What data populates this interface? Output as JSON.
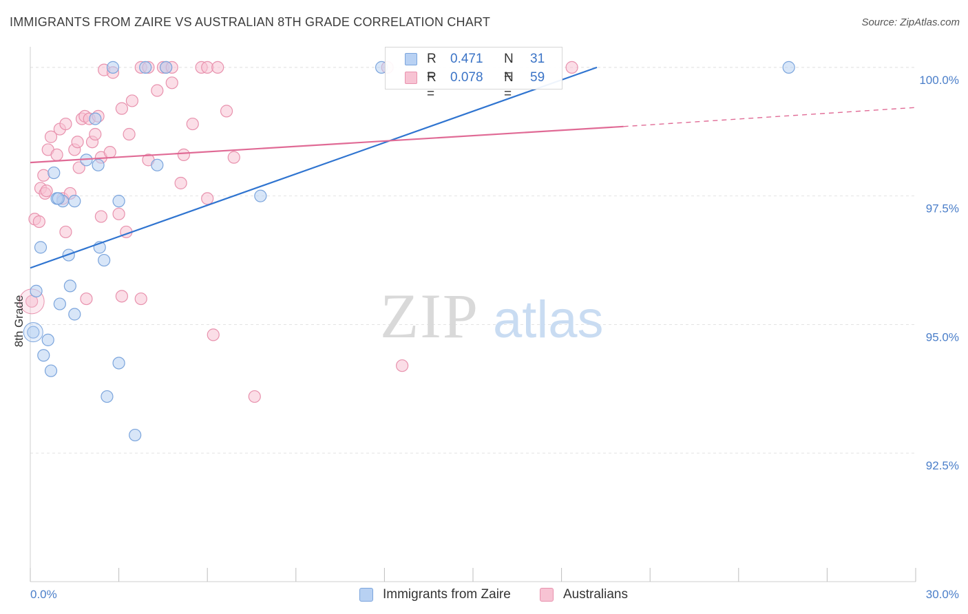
{
  "header": {
    "title": "IMMIGRANTS FROM ZAIRE VS AUSTRALIAN 8TH GRADE CORRELATION CHART",
    "source": "Source: ZipAtlas.com"
  },
  "watermark": {
    "zip": "ZIP",
    "atlas": "atlas"
  },
  "legend": {
    "rows": [
      {
        "r_label": "R =",
        "r_value": "0.471",
        "n_label": "N =",
        "n_value": "31"
      },
      {
        "r_label": "R =",
        "r_value": "0.078",
        "n_label": "N =",
        "n_value": "59"
      }
    ]
  },
  "bottom_legend": {
    "items": [
      {
        "label": "Immigrants from Zaire"
      },
      {
        "label": "Australians"
      }
    ]
  },
  "colors": {
    "blue_fill": "#b8d1f3",
    "blue_stroke": "#7aa4dc",
    "blue_line": "#2f74d0",
    "pink_fill": "#f7c3d3",
    "pink_stroke": "#e891ad",
    "pink_line": "#e06a95",
    "tick_label": "#4a7ec9",
    "grid": "#e3e3e3"
  },
  "chart_data": {
    "type": "scatter",
    "title": "IMMIGRANTS FROM ZAIRE VS AUSTRALIAN 8TH GRADE CORRELATION CHART",
    "xlabel": "",
    "ylabel": "8th Grade",
    "xlim": [
      0,
      30
    ],
    "ylim": [
      90.0,
      100.4
    ],
    "x_tick_labels": [
      "0.0%",
      "30.0%"
    ],
    "y_ticks": [
      {
        "value": 100.0,
        "label": "100.0%"
      },
      {
        "value": 97.5,
        "label": "97.5%"
      },
      {
        "value": 95.0,
        "label": "95.0%"
      },
      {
        "value": 92.5,
        "label": "92.5%"
      }
    ],
    "grid": "horizontal dashed",
    "legend_placement": "top-center",
    "series": [
      {
        "name": "Immigrants from Zaire",
        "R": 0.471,
        "N": 31,
        "trend": {
          "x": [
            0,
            19.2
          ],
          "y": [
            96.1,
            100.0
          ]
        },
        "points": [
          [
            0.1,
            94.85
          ],
          [
            0.2,
            95.65
          ],
          [
            0.45,
            94.4
          ],
          [
            0.6,
            94.7
          ],
          [
            0.7,
            94.1
          ],
          [
            0.35,
            96.5
          ],
          [
            0.8,
            97.95
          ],
          [
            1.1,
            97.4
          ],
          [
            0.9,
            97.45
          ],
          [
            1.5,
            97.4
          ],
          [
            1.0,
            95.4
          ],
          [
            1.35,
            95.75
          ],
          [
            1.5,
            95.2
          ],
          [
            1.9,
            98.2
          ],
          [
            2.2,
            99.0
          ],
          [
            2.35,
            96.5
          ],
          [
            2.5,
            96.25
          ],
          [
            2.3,
            98.1
          ],
          [
            2.8,
            100.0
          ],
          [
            3.0,
            97.4
          ],
          [
            3.0,
            94.25
          ],
          [
            2.6,
            93.6
          ],
          [
            3.55,
            92.85
          ],
          [
            3.9,
            100.0
          ],
          [
            4.3,
            98.1
          ],
          [
            4.6,
            100.0
          ],
          [
            7.8,
            97.5
          ],
          [
            11.9,
            100.0
          ],
          [
            25.7,
            100.0
          ],
          [
            0.95,
            97.45
          ],
          [
            1.3,
            96.35
          ]
        ]
      },
      {
        "name": "Australians",
        "R": 0.078,
        "N": 59,
        "trend_solid": {
          "x": [
            0,
            20.1
          ],
          "y": [
            98.15,
            98.85
          ]
        },
        "trend_dashed": {
          "x": [
            20.1,
            30
          ],
          "y": [
            98.85,
            99.22
          ]
        },
        "points": [
          [
            0.05,
            95.45
          ],
          [
            0.15,
            97.05
          ],
          [
            0.3,
            97.0
          ],
          [
            0.35,
            97.65
          ],
          [
            0.5,
            97.55
          ],
          [
            0.45,
            97.9
          ],
          [
            0.6,
            98.4
          ],
          [
            0.7,
            98.65
          ],
          [
            0.9,
            98.3
          ],
          [
            1.0,
            98.8
          ],
          [
            1.2,
            98.9
          ],
          [
            1.1,
            97.45
          ],
          [
            1.2,
            96.8
          ],
          [
            1.35,
            97.55
          ],
          [
            1.5,
            98.4
          ],
          [
            1.6,
            98.55
          ],
          [
            1.75,
            99.0
          ],
          [
            1.85,
            99.05
          ],
          [
            1.9,
            95.5
          ],
          [
            2.0,
            99.0
          ],
          [
            2.1,
            98.55
          ],
          [
            2.2,
            98.7
          ],
          [
            2.3,
            99.05
          ],
          [
            2.4,
            98.25
          ],
          [
            2.4,
            97.1
          ],
          [
            2.5,
            99.95
          ],
          [
            2.7,
            98.35
          ],
          [
            2.8,
            99.9
          ],
          [
            3.0,
            97.15
          ],
          [
            3.1,
            99.2
          ],
          [
            3.1,
            95.55
          ],
          [
            3.25,
            96.8
          ],
          [
            3.35,
            98.7
          ],
          [
            3.45,
            99.35
          ],
          [
            3.75,
            100.0
          ],
          [
            3.75,
            95.5
          ],
          [
            4.0,
            100.0
          ],
          [
            4.0,
            98.2
          ],
          [
            4.3,
            99.55
          ],
          [
            4.5,
            100.0
          ],
          [
            4.6,
            100.0
          ],
          [
            4.8,
            100.0
          ],
          [
            4.8,
            99.7
          ],
          [
            5.1,
            97.75
          ],
          [
            5.2,
            98.3
          ],
          [
            5.5,
            98.9
          ],
          [
            5.8,
            100.0
          ],
          [
            6.0,
            100.0
          ],
          [
            6.0,
            97.45
          ],
          [
            6.2,
            94.8
          ],
          [
            6.35,
            100.0
          ],
          [
            6.65,
            99.15
          ],
          [
            6.9,
            98.25
          ],
          [
            7.6,
            93.6
          ],
          [
            12.6,
            94.2
          ],
          [
            12.1,
            100.0
          ],
          [
            18.35,
            100.0
          ],
          [
            0.55,
            97.6
          ],
          [
            1.65,
            98.05
          ]
        ]
      }
    ]
  }
}
